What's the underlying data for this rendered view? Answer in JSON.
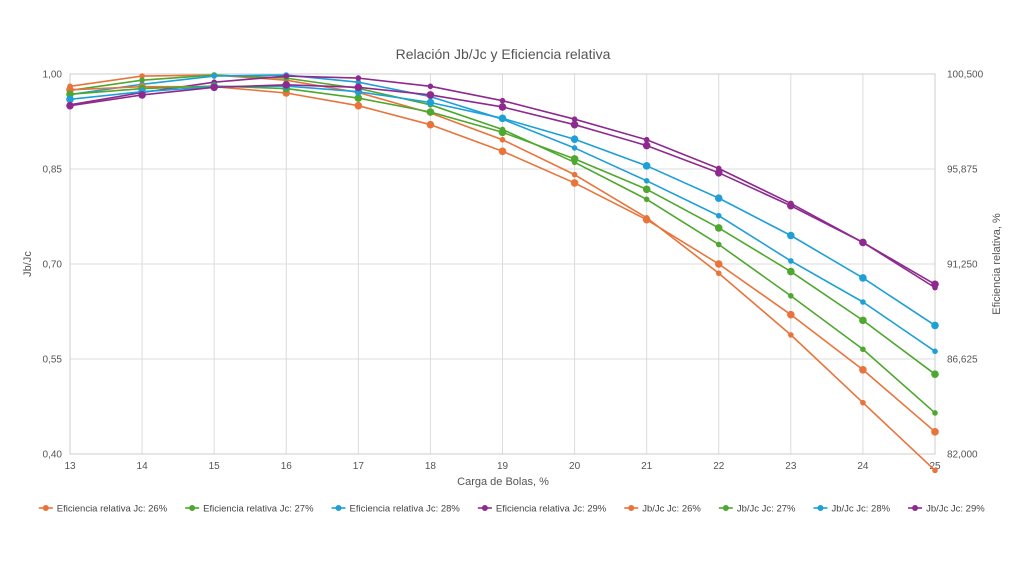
{
  "chart_data": {
    "type": "line",
    "title": "Relación Jb/Jc y Eficiencia relativa",
    "xlabel": "Carga de Bolas, %",
    "ylabel_left": "Jb/Jc",
    "ylabel_right": "Eficiencia relativa, %",
    "x": [
      13,
      14,
      15,
      16,
      17,
      18,
      19,
      20,
      21,
      22,
      23,
      24,
      25
    ],
    "x_ticks": [
      "13",
      "14",
      "15",
      "16",
      "17",
      "18",
      "19",
      "20",
      "21",
      "22",
      "23",
      "24",
      "25"
    ],
    "ylim_left": [
      0.4,
      1.0
    ],
    "ylim_right": [
      82.0,
      100.5
    ],
    "left_ticks": [
      "0,40",
      "0,55",
      "0,70",
      "0,85",
      "1,00"
    ],
    "right_ticks": [
      "82,000",
      "86,625",
      "91,250",
      "95,875",
      "100,500"
    ],
    "grid": true,
    "legend_position": "bottom",
    "series": [
      {
        "name": "Eficiencia relativa Jc: 26%",
        "axis": "right",
        "color": "#e8743b",
        "values": [
          99.9,
          100.4,
          100.45,
          100.2,
          99.6,
          98.6,
          97.3,
          95.6,
          93.5,
          90.8,
          87.8,
          84.5,
          81.2
        ]
      },
      {
        "name": "Eficiencia relativa Jc: 27%",
        "axis": "right",
        "color": "#4ea72e",
        "values": [
          99.7,
          100.2,
          100.45,
          100.3,
          99.8,
          99.0,
          97.8,
          96.2,
          94.4,
          92.2,
          89.7,
          87.1,
          84.0
        ]
      },
      {
        "name": "Eficiencia relativa Jc: 28%",
        "axis": "right",
        "color": "#1ea0d6",
        "values": [
          99.5,
          100.0,
          100.4,
          100.45,
          100.1,
          99.4,
          98.3,
          96.9,
          95.3,
          93.6,
          91.4,
          89.4,
          87.0
        ]
      },
      {
        "name": "Eficiencia relativa Jc: 29%",
        "axis": "right",
        "color": "#8e2a8e",
        "values": [
          99.0,
          99.6,
          100.1,
          100.4,
          100.3,
          99.9,
          99.2,
          98.3,
          97.3,
          95.9,
          94.2,
          92.3,
          90.1
        ]
      },
      {
        "name": "Jb/Jc Jc: 26%",
        "axis": "left",
        "color": "#e8743b",
        "values": [
          0.975,
          0.98,
          0.98,
          0.97,
          0.95,
          0.92,
          0.878,
          0.828,
          0.77,
          0.7,
          0.62,
          0.533,
          0.435
        ]
      },
      {
        "name": "Jb/Jc Jc: 27%",
        "axis": "left",
        "color": "#4ea72e",
        "values": [
          0.968,
          0.977,
          0.981,
          0.977,
          0.962,
          0.94,
          0.908,
          0.866,
          0.818,
          0.757,
          0.688,
          0.611,
          0.526
        ]
      },
      {
        "name": "Jb/Jc Jc: 28%",
        "axis": "left",
        "color": "#1ea0d6",
        "values": [
          0.96,
          0.972,
          0.98,
          0.981,
          0.972,
          0.955,
          0.93,
          0.897,
          0.855,
          0.804,
          0.745,
          0.678,
          0.603
        ]
      },
      {
        "name": "Jb/Jc Jc: 29%",
        "axis": "left",
        "color": "#8e2a8e",
        "values": [
          0.95,
          0.967,
          0.979,
          0.983,
          0.979,
          0.967,
          0.948,
          0.92,
          0.887,
          0.844,
          0.792,
          0.734,
          0.668
        ]
      }
    ]
  }
}
